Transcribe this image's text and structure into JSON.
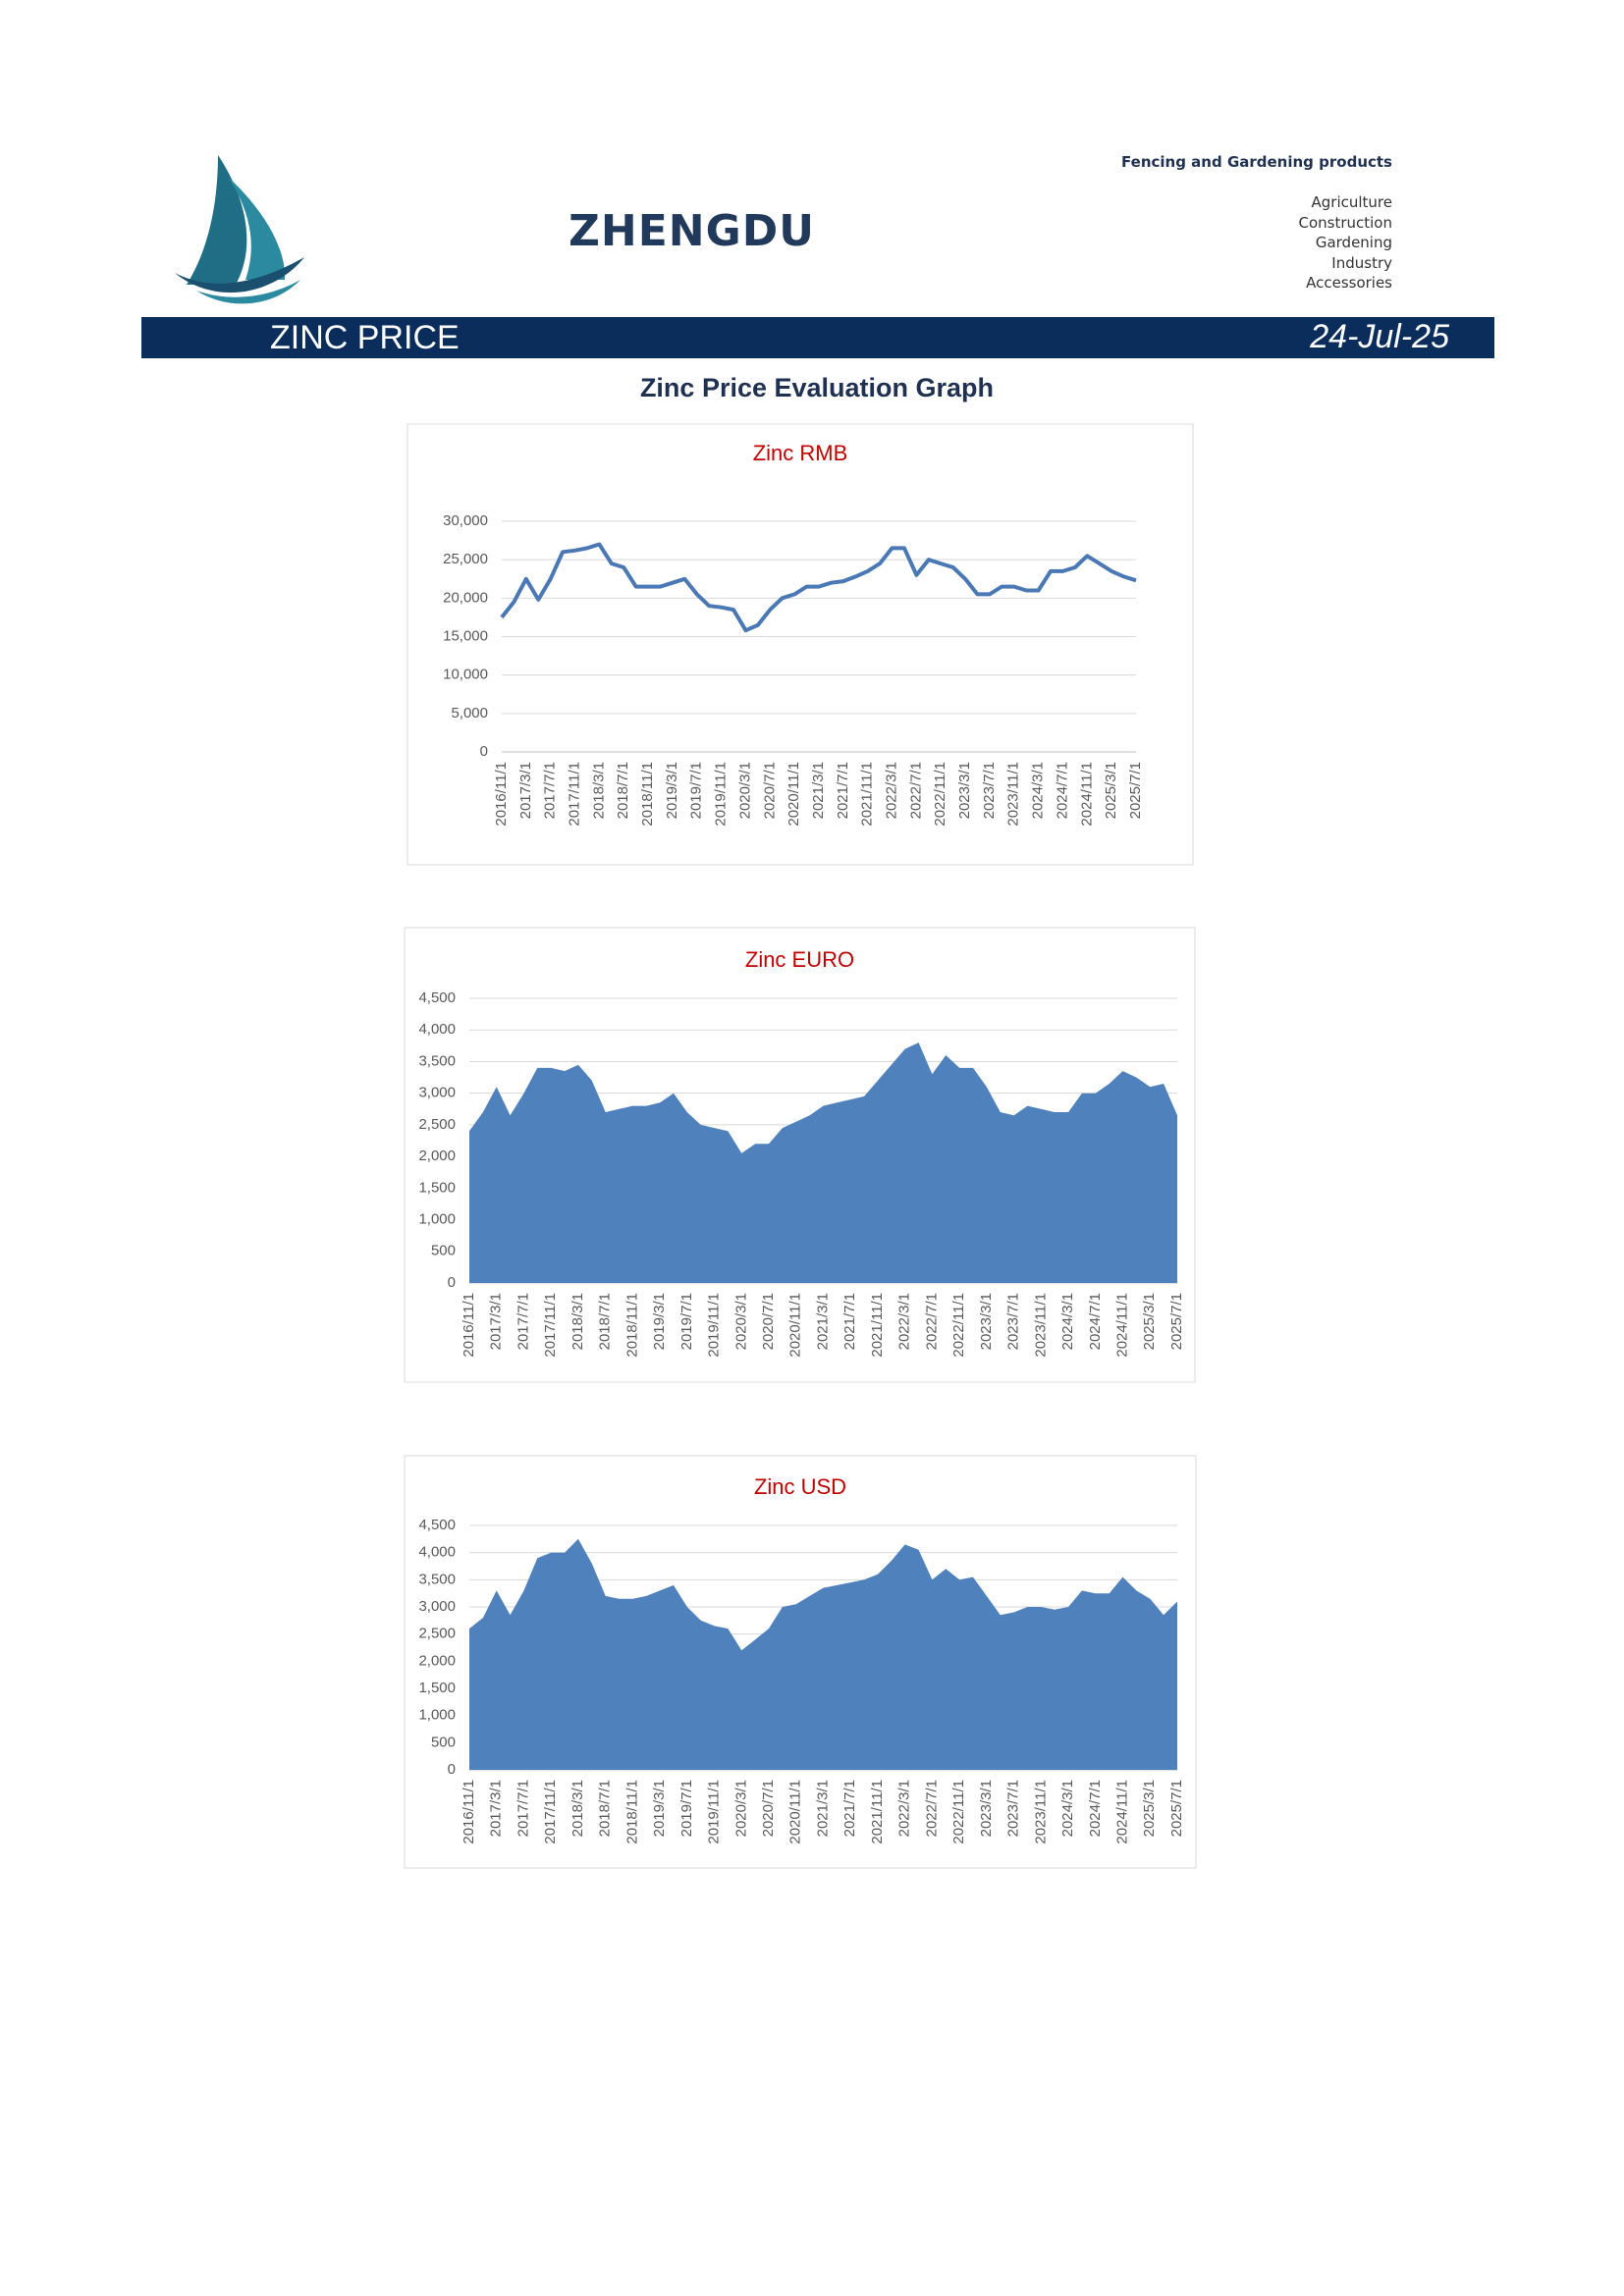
{
  "header": {
    "brand": "ZHENGDU",
    "tagline": "Fencing and Gardening products",
    "sectors": [
      "Agriculture",
      "Construction",
      "Gardening",
      "Industry",
      "Accessories"
    ]
  },
  "banner": {
    "title": "ZINC PRICE",
    "date": "24-Jul-25"
  },
  "section_title": "Zinc Price Evaluation Graph",
  "chart_data": [
    {
      "type": "line",
      "title": "Zinc RMB",
      "color": "#4a78b5",
      "categories": [
        "2016/11/1",
        null,
        "2017/3/1",
        null,
        "2017/7/1",
        null,
        "2017/11/1",
        null,
        "2018/3/1",
        null,
        "2018/7/1",
        null,
        "2018/11/1",
        null,
        "2019/3/1",
        null,
        "2019/7/1",
        null,
        "2019/11/1",
        null,
        "2020/3/1",
        null,
        "2020/7/1",
        null,
        "2020/11/1",
        null,
        "2021/3/1",
        null,
        "2021/7/1",
        null,
        "2021/11/1",
        null,
        "2022/3/1",
        null,
        "2022/7/1",
        null,
        "2022/11/1",
        null,
        "2023/3/1",
        null,
        "2023/7/1",
        null,
        "2023/11/1",
        null,
        "2024/3/1",
        null,
        "2024/7/1",
        null,
        "2024/11/1",
        null,
        "2025/3/1",
        null,
        "2025/7/1"
      ],
      "values": [
        17500,
        19500,
        22500,
        19800,
        22500,
        26000,
        26200,
        26500,
        27000,
        24500,
        24000,
        21500,
        21500,
        21500,
        22000,
        22500,
        20500,
        19000,
        18800,
        18500,
        15800,
        16500,
        18500,
        20000,
        20500,
        21500,
        21500,
        22000,
        22200,
        22800,
        23500,
        24500,
        26500,
        26500,
        23000,
        25000,
        24500,
        24000,
        22500,
        20500,
        20500,
        21500,
        21500,
        21000,
        21000,
        23500,
        23500,
        24000,
        25500,
        24500,
        23500,
        22800,
        22300
      ],
      "ylim": [
        0,
        30000
      ],
      "yticks": [
        0,
        {
          "value": 5000,
          "label": "5,000"
        },
        {
          "value": 10000,
          "label": "10,000"
        },
        {
          "value": 15000,
          "label": "15,000"
        },
        {
          "value": 20000,
          "label": "20,000"
        },
        {
          "value": 25000,
          "label": "25,000"
        },
        {
          "value": 30000,
          "label": "30,000"
        }
      ],
      "grid": true
    },
    {
      "type": "area",
      "title": "Zinc EURO",
      "color": "#4f81bd",
      "categories": [
        "2016/11/1",
        null,
        "2017/3/1",
        null,
        "2017/7/1",
        null,
        "2017/11/1",
        null,
        "2018/3/1",
        null,
        "2018/7/1",
        null,
        "2018/11/1",
        null,
        "2019/3/1",
        null,
        "2019/7/1",
        null,
        "2019/11/1",
        null,
        "2020/3/1",
        null,
        "2020/7/1",
        null,
        "2020/11/1",
        null,
        "2021/3/1",
        null,
        "2021/7/1",
        null,
        "2021/11/1",
        null,
        "2022/3/1",
        null,
        "2022/7/1",
        null,
        "2022/11/1",
        null,
        "2023/3/1",
        null,
        "2023/7/1",
        null,
        "2023/11/1",
        null,
        "2024/3/1",
        null,
        "2024/7/1",
        null,
        "2024/11/1",
        null,
        "2025/3/1",
        null,
        "2025/7/1"
      ],
      "values": [
        2400,
        2700,
        3100,
        2650,
        3000,
        3400,
        3400,
        3350,
        3450,
        3200,
        2700,
        2750,
        2800,
        2800,
        2850,
        3000,
        2700,
        2500,
        2450,
        2400,
        2050,
        2200,
        2200,
        2450,
        2550,
        2650,
        2800,
        2850,
        2900,
        2950,
        3200,
        3450,
        3700,
        3800,
        3300,
        3600,
        3400,
        3400,
        3100,
        2700,
        2650,
        2800,
        2750,
        2700,
        2700,
        3000,
        3000,
        3150,
        3350,
        3250,
        3100,
        3150,
        2650
      ],
      "ylim": [
        0,
        4500
      ],
      "yticks": [
        0,
        500,
        {
          "value": 1000,
          "label": "1,000"
        },
        {
          "value": 1500,
          "label": "1,500"
        },
        {
          "value": 2000,
          "label": "2,000"
        },
        {
          "value": 2500,
          "label": "2,500"
        },
        {
          "value": 3000,
          "label": "3,000"
        },
        {
          "value": 3500,
          "label": "3,500"
        },
        {
          "value": 4000,
          "label": "4,000"
        },
        {
          "value": 4500,
          "label": "4,500"
        }
      ],
      "grid": true
    },
    {
      "type": "area",
      "title": "Zinc USD",
      "color": "#4f81bd",
      "categories": [
        "2016/11/1",
        null,
        "2017/3/1",
        null,
        "2017/7/1",
        null,
        "2017/11/1",
        null,
        "2018/3/1",
        null,
        "2018/7/1",
        null,
        "2018/11/1",
        null,
        "2019/3/1",
        null,
        "2019/7/1",
        null,
        "2019/11/1",
        null,
        "2020/3/1",
        null,
        "2020/7/1",
        null,
        "2020/11/1",
        null,
        "2021/3/1",
        null,
        "2021/7/1",
        null,
        "2021/11/1",
        null,
        "2022/3/1",
        null,
        "2022/7/1",
        null,
        "2022/11/1",
        null,
        "2023/3/1",
        null,
        "2023/7/1",
        null,
        "2023/11/1",
        null,
        "2024/3/1",
        null,
        "2024/7/1",
        null,
        "2024/11/1",
        null,
        "2025/3/1",
        null,
        "2025/7/1"
      ],
      "values": [
        2600,
        2800,
        3300,
        2850,
        3300,
        3900,
        4000,
        4000,
        4250,
        3800,
        3200,
        3150,
        3150,
        3200,
        3300,
        3400,
        3000,
        2750,
        2650,
        2600,
        2200,
        2400,
        2600,
        3000,
        3050,
        3200,
        3350,
        3400,
        3450,
        3500,
        3600,
        3850,
        4150,
        4050,
        3500,
        3700,
        3500,
        3550,
        3200,
        2850,
        2900,
        3000,
        3000,
        2950,
        3000,
        3300,
        3250,
        3250,
        3550,
        3300,
        3150,
        2850,
        3100
      ],
      "ylim": [
        0,
        4500
      ],
      "yticks": [
        0,
        500,
        {
          "value": 1000,
          "label": "1,000"
        },
        {
          "value": 1500,
          "label": "1,500"
        },
        {
          "value": 2000,
          "label": "2,000"
        },
        {
          "value": 2500,
          "label": "2,500"
        },
        {
          "value": 3000,
          "label": "3,000"
        },
        {
          "value": 3500,
          "label": "3,500"
        },
        {
          "value": 4000,
          "label": "4,000"
        },
        {
          "value": 4500,
          "label": "4,500"
        }
      ],
      "grid": true
    }
  ]
}
